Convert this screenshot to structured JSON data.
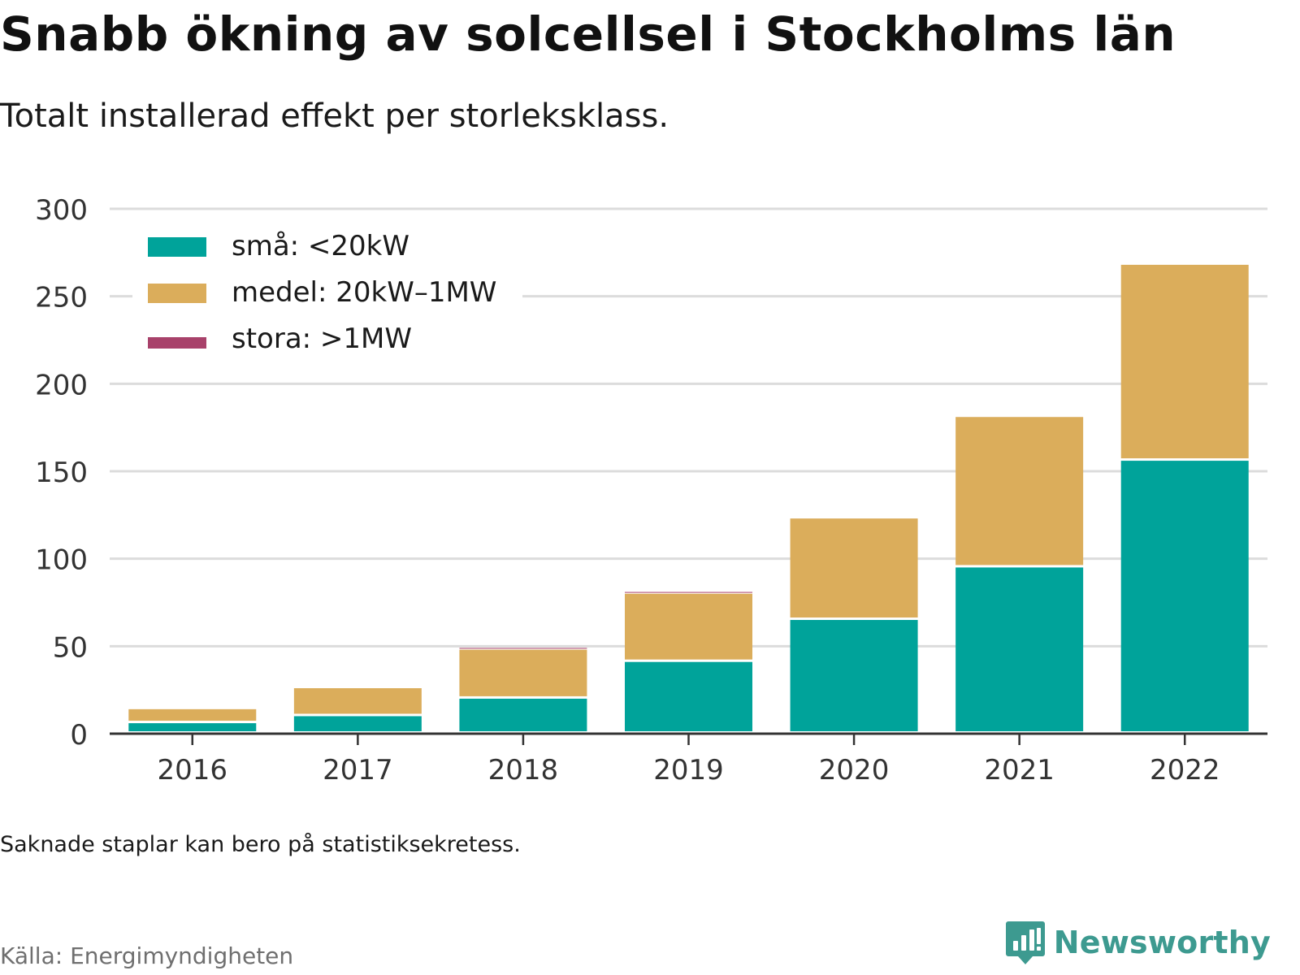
{
  "header": {
    "title": "Snabb ökning av solcellsel i Stockholms län",
    "subtitle": "Totalt installerad effekt per storleksklass."
  },
  "footer": {
    "note": "Saknade staplar kan bero på statistiksekretess.",
    "source": "Källa: Energimyndigheten",
    "brand": "Newsworthy",
    "brand_icon": "bar-chart-speech-bubble-icon"
  },
  "chart_data": {
    "type": "bar",
    "stacked": true,
    "categories": [
      "2016",
      "2017",
      "2018",
      "2019",
      "2020",
      "2021",
      "2022"
    ],
    "series": [
      {
        "name": "små: <20kW",
        "color": "#00a39a",
        "values": [
          6,
          10,
          20,
          41,
          65,
          95,
          156
        ]
      },
      {
        "name": "medel: 20kW–1MW",
        "color": "#dbad5b",
        "values": [
          8,
          16,
          28,
          39,
          58,
          86,
          112
        ]
      },
      {
        "name": "stora: >1MW",
        "color": "#a8416a",
        "values": [
          0,
          0,
          1,
          1,
          0,
          0,
          0
        ]
      }
    ],
    "ylim": [
      0,
      300
    ],
    "yticks": [
      0,
      50,
      100,
      150,
      200,
      250,
      300
    ],
    "grid": true,
    "legend": "top-left",
    "xlabel": "",
    "ylabel": ""
  }
}
